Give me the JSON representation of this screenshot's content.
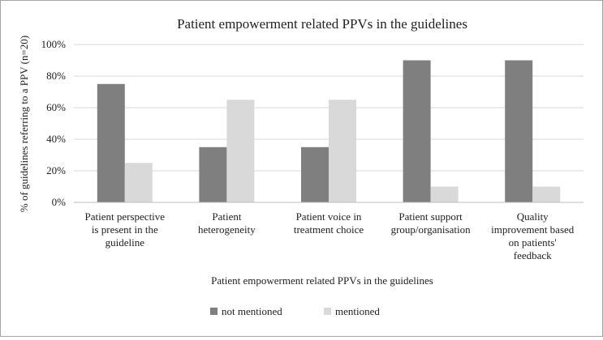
{
  "chart_data": {
    "type": "bar",
    "title": "Patient empowerment related PPVs in the guidelines",
    "xlabel": "Patient empowerment related PPVs in the guidelines",
    "ylabel": "% of guidelines referring to a PPV (n=20)",
    "ylim": [
      0,
      100
    ],
    "yticks": [
      "0%",
      "20%",
      "40%",
      "60%",
      "80%",
      "100%"
    ],
    "categories": [
      [
        "Patient perspective",
        "is present in the",
        "guideline"
      ],
      [
        "Patient",
        "heterogeneity"
      ],
      [
        "Patient voice in",
        "treatment choice"
      ],
      [
        "Patient support",
        "group/organisation"
      ],
      [
        "Quality",
        "improvement based",
        "on patients'",
        "feedback"
      ]
    ],
    "series": [
      {
        "name": "not mentioned",
        "color": "#7f7f7f",
        "values": [
          75,
          35,
          35,
          90,
          90
        ]
      },
      {
        "name": "mentioned",
        "color": "#d9d9d9",
        "values": [
          25,
          65,
          65,
          10,
          10
        ]
      }
    ],
    "grid": true,
    "legend_position": "bottom"
  }
}
